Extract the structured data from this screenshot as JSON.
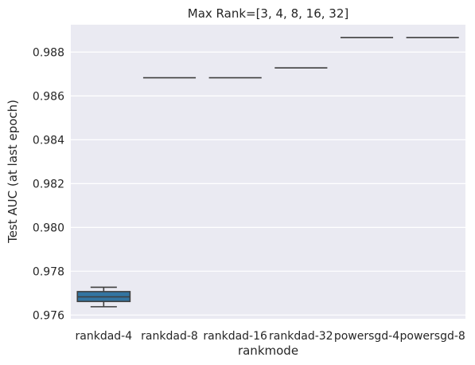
{
  "chart_data": {
    "type": "box",
    "title": "Max Rank=[3, 4, 8, 16, 32]",
    "xlabel": "rankmode",
    "ylabel": "Test AUC (at last epoch)",
    "categories": [
      "rankdad-4",
      "rankdad-8",
      "rankdad-16",
      "rankdad-32",
      "powersgd-4",
      "powersgd-8"
    ],
    "ylim": [
      0.97583,
      0.98925
    ],
    "yticks": [
      0.976,
      0.978,
      0.98,
      0.982,
      0.984,
      0.986,
      0.988
    ],
    "ytick_labels": [
      "0.976",
      "0.978",
      "0.980",
      "0.982",
      "0.984",
      "0.986",
      "0.988"
    ],
    "boxes": [
      {
        "category": "rankdad-4",
        "whislo": 0.97638,
        "q1": 0.97662,
        "med": 0.97683,
        "q3": 0.97707,
        "whishi": 0.97727
      },
      {
        "category": "rankdad-8",
        "whislo": 0.98683,
        "q1": 0.98683,
        "med": 0.98683,
        "q3": 0.98683,
        "whishi": 0.98683
      },
      {
        "category": "rankdad-16",
        "whislo": 0.98683,
        "q1": 0.98683,
        "med": 0.98683,
        "q3": 0.98683,
        "whishi": 0.98683
      },
      {
        "category": "rankdad-32",
        "whislo": 0.98728,
        "q1": 0.98728,
        "med": 0.98728,
        "q3": 0.98728,
        "whishi": 0.98728
      },
      {
        "category": "powersgd-4",
        "whislo": 0.98866,
        "q1": 0.98866,
        "med": 0.98866,
        "q3": 0.98866,
        "whishi": 0.98866
      },
      {
        "category": "powersgd-8",
        "whislo": 0.98866,
        "q1": 0.98866,
        "med": 0.98866,
        "q3": 0.98866,
        "whishi": 0.98866
      }
    ],
    "box_color": "#3274a1",
    "background_color": "#eaeaf2",
    "grid": true,
    "grid_color": "#ffffff"
  }
}
